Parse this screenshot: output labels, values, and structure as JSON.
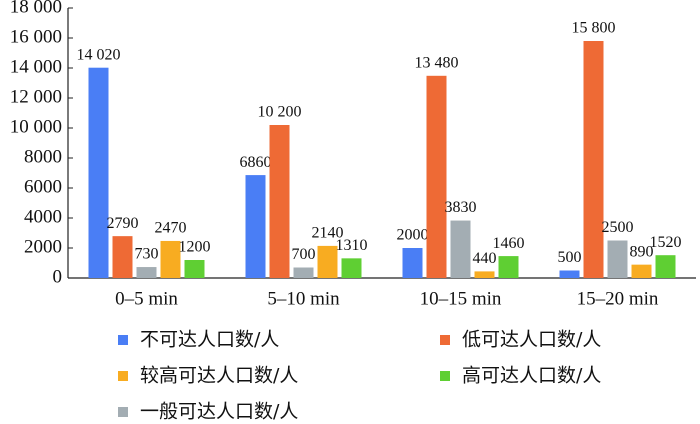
{
  "chart_data": {
    "type": "bar",
    "categories": [
      "0–5 min",
      "5–10 min",
      "10–15 min",
      "15–20 min"
    ],
    "series": [
      {
        "name": "不可达人口数/人",
        "color": "#4a7ef5",
        "values": [
          14020,
          6860,
          2000,
          500
        ],
        "value_labels": [
          "14 020",
          "6860",
          "2000",
          "500"
        ]
      },
      {
        "name": "低可达人口数/人",
        "color": "#ee6a35",
        "values": [
          2790,
          10200,
          13480,
          15800
        ],
        "value_labels": [
          "2790",
          "10 200",
          "13 480",
          "15 800"
        ]
      },
      {
        "name": "一般可达人口数/人",
        "color": "#a3adb3",
        "values": [
          730,
          700,
          3830,
          2500
        ]
      },
      {
        "name": "较高可达人口数/人",
        "color": "#f8ac21",
        "values": [
          2470,
          2140,
          440,
          890
        ]
      },
      {
        "name": "高可达人口数/人",
        "color": "#5fcf33",
        "values": [
          1200,
          1310,
          1460,
          1520
        ]
      }
    ],
    "ylim": [
      0,
      18000
    ],
    "yticks": [
      0,
      2000,
      4000,
      6000,
      8000,
      {
        "value": 10000,
        "label": "10 000"
      },
      {
        "value": 12000,
        "label": "12 000"
      },
      {
        "value": 14000,
        "label": "14 000"
      },
      {
        "value": 16000,
        "label": "16 000"
      },
      {
        "value": 18000,
        "label": "18 000"
      }
    ],
    "grid": false
  }
}
